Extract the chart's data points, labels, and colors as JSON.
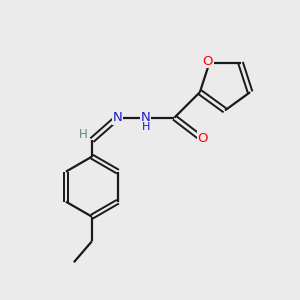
{
  "background_color": "#ebebeb",
  "bond_color": "#1a1a1a",
  "atom_colors": {
    "O": "#ff0000",
    "N": "#1a1acc",
    "H_imine": "#5a8a7a"
  },
  "figsize": [
    3.0,
    3.0
  ],
  "dpi": 100,
  "xlim": [
    0,
    10
  ],
  "ylim": [
    0,
    10
  ]
}
